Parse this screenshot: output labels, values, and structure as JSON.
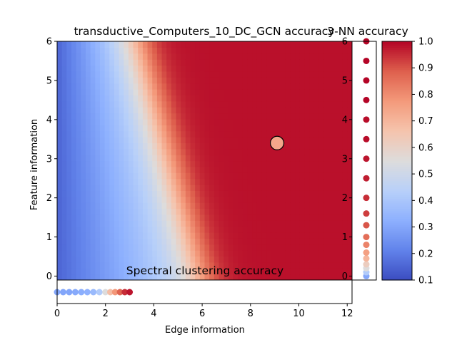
{
  "chart_data": {
    "type": "heatmap",
    "title": "transductive_Computers_10_DC_GCN accuracy",
    "xlabel": "Edge information",
    "ylabel": "Feature information",
    "xlim": [
      0,
      12.2
    ],
    "ylim": [
      -0.1,
      6
    ],
    "xticks": [
      "0",
      "2",
      "4",
      "6",
      "8",
      "10",
      "12"
    ],
    "yticks": [
      "0",
      "1",
      "2",
      "3",
      "4",
      "5",
      "6"
    ],
    "colormap": "coolwarm",
    "clim": [
      0.1,
      1.0
    ],
    "colorbar_ticks": [
      "0.1",
      "0.2",
      "0.3",
      "0.4",
      "0.5",
      "0.6",
      "0.7",
      "0.8",
      "0.9",
      "1.0"
    ],
    "heatmap_description": "accuracy rises from ~0.15 at low edge information to ~1.0; transition boundary runs from edge ~3 at feature 6 to edge ~5.5 at feature 0",
    "marker": {
      "x": 9.1,
      "y": 3.4,
      "value": 0.74
    },
    "knn_panel": {
      "title": "3-NN accuracy",
      "yticks": [
        "0",
        "1",
        "2",
        "3",
        "4",
        "5",
        "6"
      ],
      "ylim": [
        -0.1,
        6
      ],
      "points": [
        {
          "y": 0.0,
          "value": 0.3
        },
        {
          "y": 0.1,
          "value": 0.42
        },
        {
          "y": 0.2,
          "value": 0.55
        },
        {
          "y": 0.3,
          "value": 0.62
        },
        {
          "y": 0.45,
          "value": 0.7
        },
        {
          "y": 0.6,
          "value": 0.76
        },
        {
          "y": 0.8,
          "value": 0.82
        },
        {
          "y": 1.0,
          "value": 0.86
        },
        {
          "y": 1.3,
          "value": 0.9
        },
        {
          "y": 1.6,
          "value": 0.93
        },
        {
          "y": 2.0,
          "value": 0.95
        },
        {
          "y": 2.5,
          "value": 0.97
        },
        {
          "y": 3.0,
          "value": 0.98
        },
        {
          "y": 3.5,
          "value": 0.99
        },
        {
          "y": 4.0,
          "value": 0.99
        },
        {
          "y": 4.5,
          "value": 1.0
        },
        {
          "y": 5.0,
          "value": 1.0
        },
        {
          "y": 5.5,
          "value": 1.0
        },
        {
          "y": 6.0,
          "value": 1.0
        }
      ]
    },
    "spectral_panel": {
      "title": "Spectral clustering accuracy",
      "points": [
        {
          "x": 0.0,
          "value": 0.3
        },
        {
          "x": 0.25,
          "value": 0.3
        },
        {
          "x": 0.5,
          "value": 0.3
        },
        {
          "x": 0.75,
          "value": 0.31
        },
        {
          "x": 1.0,
          "value": 0.32
        },
        {
          "x": 1.25,
          "value": 0.33
        },
        {
          "x": 1.5,
          "value": 0.36
        },
        {
          "x": 1.75,
          "value": 0.42
        },
        {
          "x": 2.0,
          "value": 0.55
        },
        {
          "x": 2.2,
          "value": 0.68
        },
        {
          "x": 2.4,
          "value": 0.78
        },
        {
          "x": 2.6,
          "value": 0.88
        },
        {
          "x": 2.8,
          "value": 0.95
        },
        {
          "x": 3.0,
          "value": 0.98
        }
      ]
    }
  }
}
